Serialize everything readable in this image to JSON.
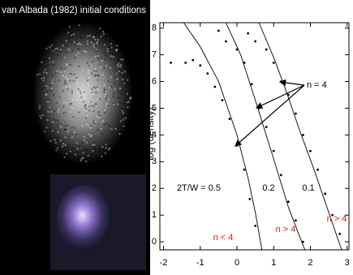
{
  "left_panel": {
    "title": "van Albada (1982) initial conditions"
  },
  "chart_data": {
    "type": "scatter",
    "ylabel": "log (density)",
    "xlim": [
      -2.1,
      3.05
    ],
    "ylim": [
      -0.3,
      8.2
    ],
    "xticks": [
      -2,
      -1,
      0,
      1,
      2,
      3
    ],
    "yticks": [
      0,
      1,
      2,
      3,
      4,
      5,
      6,
      7,
      8
    ],
    "series": [
      {
        "name": "2T/W = 0.5",
        "color": "#000000",
        "x": [
          -1.8,
          -1.4,
          -1.2,
          -1.0,
          -0.8,
          -0.6,
          -0.4,
          -0.2,
          0.0,
          0.2,
          0.35,
          0.5
        ],
        "values": [
          6.7,
          6.7,
          6.8,
          6.6,
          6.3,
          5.8,
          5.3,
          4.6,
          3.6,
          2.7,
          1.6,
          0.6
        ],
        "curve_x": [
          -1.45,
          -1.0,
          -0.5,
          0.0,
          0.3,
          0.5,
          0.68
        ],
        "curve_y": [
          8.2,
          7.3,
          6.0,
          4.0,
          2.4,
          1.1,
          -0.3
        ]
      },
      {
        "name": "0.2",
        "color": "#000000",
        "x": [
          -0.5,
          -0.3,
          0.0,
          0.2,
          0.4,
          0.6,
          0.8,
          1.0,
          1.2,
          1.4,
          1.6,
          1.8
        ],
        "values": [
          7.9,
          7.5,
          7.2,
          6.7,
          5.9,
          5.0,
          4.3,
          3.4,
          2.5,
          1.5,
          0.8,
          0.0
        ],
        "curve_x": [
          -0.3,
          0.1,
          0.5,
          1.0,
          1.4,
          1.65,
          1.85
        ],
        "curve_y": [
          8.2,
          7.0,
          5.3,
          3.1,
          1.3,
          0.4,
          -0.3
        ]
      },
      {
        "name": "0.1",
        "color": "#000000",
        "x": [
          0.3,
          0.5,
          0.8,
          1.0,
          1.2,
          1.4,
          1.6,
          1.8,
          2.0,
          2.2,
          2.4,
          2.6,
          2.8
        ],
        "values": [
          7.8,
          7.5,
          7.2,
          6.7,
          6.0,
          5.5,
          4.8,
          4.0,
          3.4,
          2.7,
          1.8,
          1.0,
          0.3
        ],
        "curve_x": [
          0.6,
          1.0,
          1.3,
          1.7,
          2.1,
          2.5,
          2.85
        ],
        "curve_y": [
          8.2,
          6.9,
          5.8,
          4.2,
          2.7,
          1.1,
          -0.3
        ]
      }
    ],
    "annotations": [
      {
        "text": "n = 4",
        "color": "#000000"
      },
      {
        "text": "n < 4",
        "color": "#cc2200"
      },
      {
        "text": "n > 4",
        "color": "#cc2200"
      },
      {
        "text": "n > 4",
        "color": "#cc2200"
      }
    ]
  }
}
